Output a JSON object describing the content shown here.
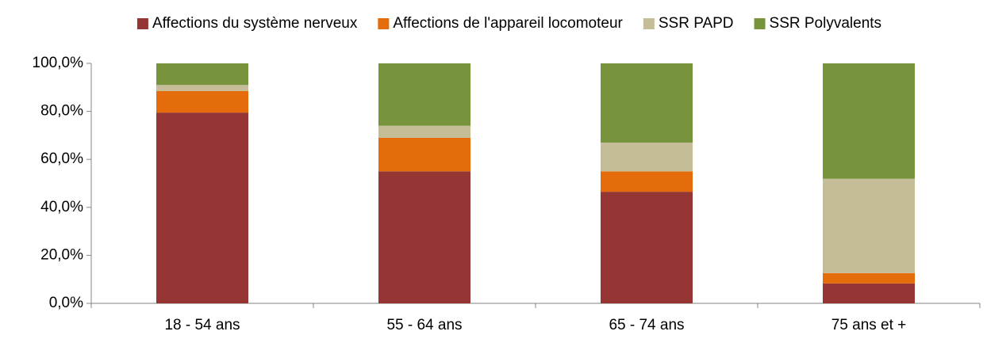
{
  "chart_data": {
    "type": "bar",
    "stacked": true,
    "categories": [
      "18 - 54 ans",
      "55 - 64 ans",
      "65 - 74 ans",
      "75 ans et +"
    ],
    "series": [
      {
        "name": "Affections du système nerveux",
        "color": "#963634",
        "values": [
          79.5,
          55,
          46.5,
          8.3
        ]
      },
      {
        "name": "Affections de l'appareil locomoteur",
        "color": "#e46c0a",
        "values": [
          9,
          14,
          8.5,
          4.3
        ]
      },
      {
        "name": "SSR PAPD",
        "color": "#c4bd97",
        "values": [
          2.5,
          5,
          12,
          39.3
        ]
      },
      {
        "name": "SSR Polyvalents",
        "color": "#77933c",
        "values": [
          9,
          26,
          33,
          48.1
        ]
      }
    ],
    "ylim": [
      0,
      100
    ],
    "yticks": [
      {
        "value": 0,
        "label": "0,0%"
      },
      {
        "value": 20,
        "label": "20,0%"
      },
      {
        "value": 40,
        "label": "40,0%"
      },
      {
        "value": 60,
        "label": "60,0%"
      },
      {
        "value": 80,
        "label": "80,0%"
      },
      {
        "value": 100,
        "label": "100,0%"
      }
    ],
    "grid": false,
    "legend": "top"
  }
}
